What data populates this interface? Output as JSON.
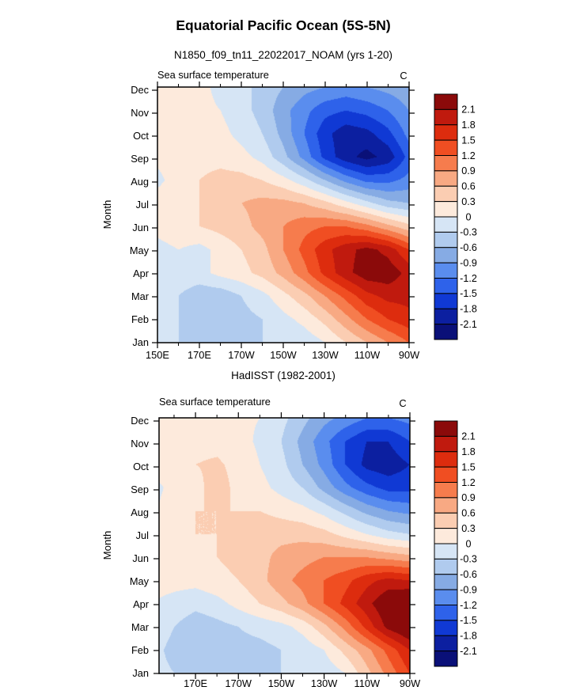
{
  "title": "Equatorial Pacific Ocean (5S-5N)",
  "subtitle": "N1850_f09_tn11_22022017_NOAM (yrs 1-20)",
  "panel_header": "Sea surface temperature",
  "unit_label": "C",
  "y_axis_label": "Month",
  "months": [
    "Jan",
    "Feb",
    "Mar",
    "Apr",
    "May",
    "Jun",
    "Jul",
    "Aug",
    "Sep",
    "Oct",
    "Nov",
    "Dec"
  ],
  "colorbar": {
    "labels_top_to_bottom": [
      "2.1",
      "1.8",
      "1.5",
      "1.2",
      "0.9",
      "0.6",
      "0.3",
      "0",
      "-0.3",
      "-0.6",
      "-0.9",
      "-1.2",
      "-1.5",
      "-1.8",
      "-2.1"
    ],
    "levels": [
      -2.1,
      -1.8,
      -1.5,
      -1.2,
      -0.9,
      -0.6,
      -0.3,
      0,
      0.3,
      0.6,
      0.9,
      1.2,
      1.5,
      1.8,
      2.1
    ],
    "colors_low_to_high": [
      "#0a1078",
      "#0c1fa0",
      "#1039d4",
      "#2e62ea",
      "#5a8dee",
      "#86abe4",
      "#b0cbee",
      "#d6e5f5",
      "#fdeadc",
      "#fbcdb2",
      "#f8a983",
      "#f67c4d",
      "#f04e22",
      "#dd2c0e",
      "#c01a0e",
      "#8b0a0a"
    ]
  },
  "chart_data": [
    {
      "type": "heatmap",
      "name": "model-sst-anomaly-seasonal-cycle",
      "title": "N1850_f09_tn11_22022017_NOAM (yrs 1-20)",
      "field": "Sea surface temperature",
      "units": "C",
      "x_min": 150,
      "x_max": 270,
      "x_grid_lons": [
        150,
        160,
        170,
        180,
        190,
        200,
        210,
        220,
        230,
        240,
        250,
        260,
        270
      ],
      "x_tick_labels": [
        "150E",
        "170E",
        "170W",
        "150W",
        "130W",
        "110W",
        "90W"
      ],
      "x_tick_lons": [
        150,
        170,
        190,
        210,
        230,
        250,
        270
      ],
      "x_minor_lons": [
        160,
        180,
        200,
        220,
        240,
        260
      ],
      "y_categories": [
        "Jan",
        "Feb",
        "Mar",
        "Apr",
        "May",
        "Jun",
        "Jul",
        "Aug",
        "Sep",
        "Oct",
        "Nov",
        "Dec"
      ],
      "ylabel": "Month",
      "contour_interval": 0.3,
      "zmin": -2.1,
      "zmax": 2.1,
      "values": [
        [
          -0.2,
          -0.3,
          -0.3,
          -0.4,
          -0.4,
          -0.3,
          -0.3,
          -0.2,
          0.0,
          0.3,
          0.6,
          0.9,
          1.2
        ],
        [
          -0.2,
          -0.3,
          -0.4,
          -0.5,
          -0.4,
          -0.3,
          -0.1,
          0.1,
          0.4,
          0.8,
          1.2,
          1.5,
          1.7
        ],
        [
          -0.1,
          -0.3,
          -0.5,
          -0.5,
          -0.3,
          -0.1,
          0.2,
          0.5,
          0.9,
          1.3,
          1.7,
          1.9,
          1.9
        ],
        [
          0.0,
          -0.1,
          -0.1,
          0.1,
          0.2,
          0.4,
          0.7,
          1.1,
          1.6,
          2.0,
          2.3,
          2.3,
          2.0
        ],
        [
          -0.1,
          0.0,
          -0.1,
          0.1,
          0.3,
          0.5,
          0.9,
          1.3,
          1.7,
          2.0,
          2.2,
          2.0,
          1.5
        ],
        [
          0.1,
          0.2,
          0.3,
          0.4,
          0.5,
          0.7,
          0.9,
          1.1,
          1.2,
          1.2,
          1.0,
          0.7,
          0.4
        ],
        [
          0.2,
          0.3,
          0.3,
          0.5,
          0.6,
          0.7,
          0.7,
          0.6,
          0.4,
          0.1,
          -0.2,
          -0.5,
          -0.6
        ],
        [
          -0.1,
          0.2,
          0.3,
          0.4,
          0.4,
          0.3,
          0.1,
          -0.2,
          -0.6,
          -1.0,
          -1.3,
          -1.3,
          -1.1
        ],
        [
          0.1,
          0.2,
          0.2,
          0.2,
          0.1,
          -0.1,
          -0.5,
          -1.0,
          -1.6,
          -2.0,
          -2.2,
          -2.0,
          -1.4
        ],
        [
          0.1,
          0.2,
          0.2,
          0.1,
          -0.1,
          -0.3,
          -0.7,
          -1.2,
          -1.7,
          -2.0,
          -1.9,
          -1.6,
          -1.1
        ],
        [
          0.1,
          0.1,
          0.1,
          0.0,
          -0.2,
          -0.4,
          -0.8,
          -1.1,
          -1.4,
          -1.5,
          -1.4,
          -1.2,
          -0.9
        ],
        [
          0.1,
          0.1,
          0.1,
          -0.1,
          -0.2,
          -0.4,
          -0.6,
          -0.8,
          -0.9,
          -1.0,
          -0.9,
          -0.8,
          -0.7
        ]
      ]
    },
    {
      "type": "heatmap",
      "name": "hadisst-sst-anomaly-seasonal-cycle",
      "title": "HadISST (1982-2001)",
      "field": "Sea surface temperature",
      "units": "C",
      "x_min": 153,
      "x_max": 270,
      "x_grid_lons": [
        150,
        160,
        170,
        180,
        190,
        200,
        210,
        220,
        230,
        240,
        250,
        260,
        270
      ],
      "x_tick_labels": [
        "170E",
        "170W",
        "150W",
        "130W",
        "110W",
        "90W"
      ],
      "x_tick_lons": [
        170,
        190,
        210,
        230,
        250,
        270
      ],
      "x_minor_lons": [
        160,
        180,
        200,
        220,
        240,
        260
      ],
      "y_categories": [
        "Jan",
        "Feb",
        "Mar",
        "Apr",
        "May",
        "Jun",
        "Jul",
        "Aug",
        "Sep",
        "Oct",
        "Nov",
        "Dec"
      ],
      "ylabel": "Month",
      "contour_interval": 0.3,
      "zmin": -2.1,
      "zmax": 2.1,
      "values": [
        [
          -0.2,
          -0.3,
          -0.3,
          -0.3,
          -0.3,
          -0.4,
          -0.3,
          -0.3,
          -0.2,
          0.0,
          0.5,
          1.0,
          1.5
        ],
        [
          -0.2,
          -0.4,
          -0.5,
          -0.5,
          -0.4,
          -0.4,
          -0.3,
          -0.2,
          0.0,
          0.4,
          0.8,
          1.3,
          1.8
        ],
        [
          -0.1,
          -0.3,
          -0.5,
          -0.4,
          -0.3,
          -0.2,
          -0.1,
          0.1,
          0.5,
          1.0,
          1.6,
          2.2,
          2.5
        ],
        [
          0.0,
          -0.1,
          -0.2,
          -0.1,
          0.1,
          0.3,
          0.5,
          0.8,
          1.2,
          1.6,
          2.0,
          2.4,
          2.6
        ],
        [
          0.1,
          0.1,
          0.1,
          0.2,
          0.3,
          0.5,
          0.8,
          1.0,
          1.2,
          1.4,
          1.7,
          1.9,
          1.8
        ],
        [
          0.1,
          0.2,
          0.2,
          0.3,
          0.4,
          0.5,
          0.7,
          0.8,
          0.9,
          0.9,
          0.9,
          0.8,
          0.7
        ],
        [
          0.2,
          0.2,
          0.3,
          0.3,
          0.4,
          0.5,
          0.5,
          0.5,
          0.4,
          0.2,
          0.0,
          -0.2,
          -0.3
        ],
        [
          -0.05,
          0.2,
          0.3,
          0.3,
          0.3,
          0.3,
          0.2,
          0.1,
          -0.1,
          -0.4,
          -0.7,
          -0.9,
          -1.0
        ],
        [
          -0.1,
          0.1,
          0.2,
          0.45,
          0.2,
          0.1,
          -0.1,
          -0.3,
          -0.7,
          -1.1,
          -1.4,
          -1.6,
          -1.6
        ],
        [
          0.1,
          0.2,
          0.3,
          0.35,
          0.2,
          0.0,
          -0.2,
          -0.6,
          -1.0,
          -1.5,
          -1.9,
          -2.0,
          -1.8
        ],
        [
          0.1,
          0.2,
          0.2,
          0.2,
          0.1,
          -0.05,
          -0.3,
          -0.7,
          -1.1,
          -1.5,
          -1.8,
          -1.8,
          -1.5
        ],
        [
          0.1,
          0.15,
          0.15,
          0.1,
          0.05,
          0.0,
          -0.2,
          -0.5,
          -0.8,
          -1.0,
          -1.2,
          -1.2,
          -1.1
        ]
      ]
    }
  ]
}
